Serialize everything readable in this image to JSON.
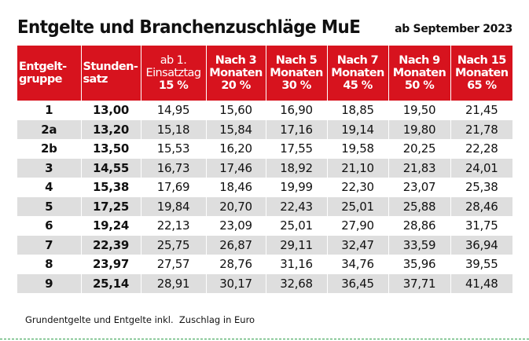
{
  "title": "Entgelte und Branchenzuschläge MuE",
  "subtitle": "ab September 2023",
  "columns": [
    {
      "line1": "Entgelt-",
      "line2": "gruppe",
      "line3": ""
    },
    {
      "line1": "Stunden-",
      "line2": "satz",
      "line3": ""
    },
    {
      "line1": "ab 1.",
      "line2": "Einsatztag",
      "line3": "15 %"
    },
    {
      "line1": "Nach 3",
      "line2": "Monaten",
      "line3": "20 %"
    },
    {
      "line1": "Nach 5",
      "line2": "Monaten",
      "line3": "30 %"
    },
    {
      "line1": "Nach 7",
      "line2": "Monaten",
      "line3": "45 %"
    },
    {
      "line1": "Nach 9",
      "line2": "Monaten",
      "line3": "50 %"
    },
    {
      "line1": "Nach 15",
      "line2": "Monaten",
      "line3": "65 %"
    }
  ],
  "rows": [
    [
      "1",
      "13,00",
      "14,95",
      "15,60",
      "16,90",
      "18,85",
      "19,50",
      "21,45"
    ],
    [
      "2a",
      "13,20",
      "15,18",
      "15,84",
      "17,16",
      "19,14",
      "19,80",
      "21,78"
    ],
    [
      "2b",
      "13,50",
      "15,53",
      "16,20",
      "17,55",
      "19,58",
      "20,25",
      "22,28"
    ],
    [
      "3",
      "14,55",
      "16,73",
      "17,46",
      "18,92",
      "21,10",
      "21,83",
      "24,01"
    ],
    [
      "4",
      "15,38",
      "17,69",
      "18,46",
      "19,99",
      "22,30",
      "23,07",
      "25,38"
    ],
    [
      "5",
      "17,25",
      "19,84",
      "20,70",
      "22,43",
      "25,01",
      "25,88",
      "28,46"
    ],
    [
      "6",
      "19,24",
      "22,13",
      "23,09",
      "25,01",
      "27,90",
      "28,86",
      "31,75"
    ],
    [
      "7",
      "22,39",
      "25,75",
      "26,87",
      "29,11",
      "32,47",
      "33,59",
      "36,94"
    ],
    [
      "8",
      "23,97",
      "27,57",
      "28,76",
      "31,16",
      "34,76",
      "35,96",
      "39,55"
    ],
    [
      "9",
      "25,14",
      "28,91",
      "30,17",
      "32,68",
      "36,45",
      "37,71",
      "41,48"
    ]
  ],
  "footnote": "Grundentgelte und Entgelte inkl.  Zuschlag in Euro",
  "colors": {
    "header_bg": "#d7131e",
    "stripe": "#dedede",
    "dash": "#2e9e4a"
  }
}
